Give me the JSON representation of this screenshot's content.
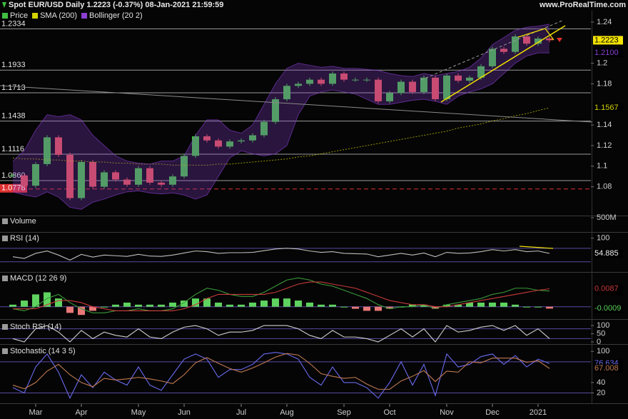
{
  "header": {
    "title": "Spot EUR/USD Daily 1.2223 (-0.37%) 08-Jan-2021 21:59:59",
    "site": "www.ProRealTime.com"
  },
  "chart_data": [
    {
      "type": "candlestick",
      "categories": [
        null,
        null,
        "Mar",
        null,
        null,
        null,
        "Apr",
        null,
        null,
        null,
        null,
        "May",
        null,
        null,
        null,
        "Jun",
        null,
        null,
        null,
        null,
        "Jul",
        null,
        null,
        null,
        "Aug",
        null,
        null,
        null,
        null,
        "Sep",
        null,
        null,
        null,
        "Oct",
        null,
        null,
        null,
        null,
        "Nov",
        null,
        null,
        null,
        "Dec",
        null,
        null,
        null,
        "2021",
        null
      ],
      "ylim": [
        1.052,
        1.251
      ],
      "yticks": [
        1.24,
        1.2,
        1.18,
        1.14,
        1.12,
        1.1,
        1.08
      ],
      "levels": [
        1.2334,
        1.1933,
        1.1713,
        1.1438,
        1.1116,
        {
          "value": 1.086,
          "label": "1.0860"
        }
      ],
      "level_color": "#9a9a9a",
      "level_labels": true,
      "stop_level": 1.0778,
      "stop_color": "#e03030",
      "series": [
        {
          "name": "Price",
          "type": "candle",
          "color": "#3fbf3f",
          "down_color": "#e05050",
          "show_last": true,
          "last_box": "#f5e400",
          "values": [
            1.091,
            1.081,
            1.102,
            1.128,
            1.111,
            1.069,
            1.104,
            1.08,
            1.094,
            1.087,
            1.082,
            1.098,
            1.084,
            1.082,
            1.09,
            1.11,
            1.129,
            1.125,
            1.119,
            1.124,
            1.125,
            1.13,
            1.143,
            1.165,
            1.178,
            1.18,
            1.184,
            1.18,
            1.19,
            1.184,
            1.184,
            1.184,
            1.163,
            1.171,
            1.182,
            1.172,
            1.186,
            1.165,
            1.188,
            1.183,
            1.186,
            1.197,
            1.214,
            1.211,
            1.226,
            1.219,
            1.224,
            1.2223
          ]
        },
        {
          "name": "SMA (200)",
          "type": "line",
          "color": "#d4d400",
          "dashed": true,
          "show_last": true,
          "values": [
            1.108,
            1.107,
            1.107,
            1.106,
            1.106,
            1.105,
            1.105,
            1.104,
            1.104,
            1.103,
            1.103,
            1.102,
            1.102,
            1.102,
            1.101,
            1.101,
            1.101,
            1.101,
            1.102,
            1.102,
            1.103,
            1.104,
            1.105,
            1.106,
            1.107,
            1.109,
            1.11,
            1.112,
            1.114,
            1.116,
            1.118,
            1.12,
            1.122,
            1.124,
            1.126,
            1.128,
            1.13,
            1.132,
            1.134,
            1.137,
            1.139,
            1.141,
            1.144,
            1.146,
            1.149,
            1.151,
            1.154,
            1.1567
          ]
        },
        {
          "name": "Bollinger (20 2)",
          "type": "band",
          "color": "#8a3fd0",
          "last_label": "1.2100",
          "upper": [
            1.105,
            1.115,
            1.135,
            1.15,
            1.148,
            1.15,
            1.145,
            1.13,
            1.12,
            1.11,
            1.105,
            1.103,
            1.102,
            1.105,
            1.105,
            1.11,
            1.13,
            1.145,
            1.145,
            1.135,
            1.132,
            1.14,
            1.16,
            1.18,
            1.195,
            1.2,
            1.198,
            1.196,
            1.197,
            1.195,
            1.195,
            1.194,
            1.193,
            1.19,
            1.188,
            1.187,
            1.19,
            1.188,
            1.19,
            1.192,
            1.196,
            1.205,
            1.218,
            1.225,
            1.232,
            1.235,
            1.236,
            1.238
          ],
          "lower": [
            1.075,
            1.072,
            1.07,
            1.075,
            1.07,
            1.06,
            1.058,
            1.065,
            1.068,
            1.072,
            1.075,
            1.076,
            1.074,
            1.073,
            1.074,
            1.072,
            1.068,
            1.072,
            1.09,
            1.108,
            1.115,
            1.112,
            1.11,
            1.112,
            1.12,
            1.15,
            1.168,
            1.172,
            1.174,
            1.172,
            1.17,
            1.165,
            1.16,
            1.16,
            1.162,
            1.164,
            1.165,
            1.163,
            1.16,
            1.168,
            1.172,
            1.175,
            1.18,
            1.19,
            1.2,
            1.207,
            1.21,
            1.21
          ]
        }
      ]
    },
    {
      "type": "volume",
      "title": "Volume",
      "ylim": [
        0,
        550000000
      ],
      "yticks": [
        {
          "value": 500000000,
          "label": "500M"
        }
      ]
    },
    {
      "type": "line",
      "title": "RSI (14)",
      "ylim": [
        0,
        114
      ],
      "yticks": [
        100
      ],
      "levels": [
        70,
        30
      ],
      "level_color": "#5a4aa0",
      "series": [
        {
          "type": "line",
          "color": "#bdbdbd",
          "show_last": true,
          "values": [
            45,
            40,
            55,
            62,
            50,
            35,
            52,
            44,
            50,
            48,
            46,
            52,
            47,
            46,
            50,
            56,
            62,
            60,
            55,
            57,
            57,
            58,
            63,
            68,
            70,
            68,
            62,
            58,
            60,
            55,
            54,
            53,
            45,
            50,
            55,
            50,
            56,
            45,
            58,
            55,
            56,
            60,
            66,
            62,
            66,
            60,
            62,
            54.885
          ]
        }
      ]
    },
    {
      "type": "line",
      "title": "MACD (12 26 9)",
      "ylim": [
        -0.006,
        0.0162
      ],
      "levels": [
        0
      ],
      "level_color": "#5a4aa0",
      "series": [
        {
          "type": "histogram",
          "color": "#5fd35f",
          "down_color": "#e87878",
          "show_last": true,
          "values": [
            0.001,
            0.003,
            0.006,
            0.007,
            0.004,
            -0.003,
            -0.004,
            -0.002,
            0,
            0.001,
            0.002,
            0.001,
            0.001,
            0.001,
            0.002,
            0.003,
            0.004,
            0.004,
            0.002,
            0.001,
            0.001,
            0.002,
            0.003,
            0.004,
            0.004,
            0.003,
            0.002,
            0.001,
            0.001,
            0,
            -0.001,
            -0.002,
            -0.002,
            -0.001,
            0,
            0.001,
            0.001,
            -0.001,
            0.001,
            0.001,
            0.002,
            0.002,
            0.002,
            0.002,
            0.001,
            0,
            0,
            -0.0009
          ]
        },
        {
          "type": "line",
          "color": "#3a9a3a",
          "show_last": true,
          "values": [
            -0.001,
            -0.002,
            0,
            0.004,
            0.006,
            0.002,
            -0.001,
            -0.003,
            -0.003,
            -0.002,
            -0.002,
            -0.001,
            -0.002,
            -0.002,
            -0.001,
            0.002,
            0.006,
            0.009,
            0.008,
            0.006,
            0.005,
            0.005,
            0.007,
            0.01,
            0.013,
            0.014,
            0.013,
            0.011,
            0.01,
            0.008,
            0.006,
            0.004,
            0.001,
            -0.001,
            0,
            0,
            0.001,
            -0.001,
            0.001,
            0.002,
            0.003,
            0.004,
            0.006,
            0.007,
            0.009,
            0.009,
            0.008,
            0.0076
          ]
        },
        {
          "type": "line",
          "color": "#c83a3a",
          "show_last": true,
          "values": [
            -0.001,
            -0.001,
            -0.001,
            0.001,
            0.003,
            0.003,
            0.002,
            0,
            -0.001,
            -0.002,
            -0.002,
            -0.002,
            -0.002,
            -0.002,
            -0.002,
            -0.001,
            0.001,
            0.004,
            0.006,
            0.006,
            0.006,
            0.006,
            0.006,
            0.007,
            0.009,
            0.011,
            0.012,
            0.012,
            0.011,
            0.01,
            0.009,
            0.007,
            0.005,
            0.003,
            0.002,
            0.001,
            0.001,
            0,
            0,
            0.001,
            0.002,
            0.003,
            0.004,
            0.005,
            0.006,
            0.007,
            0.008,
            0.0087
          ]
        }
      ]
    },
    {
      "type": "line",
      "title": "Stoch RSI (14)",
      "ylim": [
        -13,
        122
      ],
      "yticks": [
        100,
        50,
        0
      ],
      "levels": [
        80,
        20
      ],
      "level_color": "#5a4aa0",
      "series": [
        {
          "type": "line",
          "color": "#cfcfcf",
          "values": [
            20,
            0,
            80,
            100,
            60,
            0,
            70,
            20,
            60,
            40,
            30,
            80,
            30,
            20,
            60,
            90,
            100,
            80,
            40,
            60,
            60,
            70,
            100,
            100,
            100,
            80,
            40,
            20,
            70,
            30,
            30,
            20,
            0,
            40,
            80,
            30,
            80,
            0,
            100,
            60,
            70,
            90,
            100,
            70,
            100,
            40,
            80,
            20
          ]
        }
      ]
    },
    {
      "type": "line",
      "title": "Stochastic (14 3 5)",
      "ylim": [
        0,
        110
      ],
      "yticks": [
        100,
        40,
        20
      ],
      "levels": [
        80,
        20
      ],
      "level_color": "#5a4aa0",
      "series": [
        {
          "type": "line",
          "color": "#6a6af0",
          "show_last": true,
          "values": [
            30,
            20,
            70,
            95,
            60,
            10,
            55,
            30,
            60,
            45,
            35,
            70,
            35,
            25,
            55,
            85,
            95,
            85,
            50,
            65,
            65,
            75,
            95,
            98,
            95,
            85,
            50,
            35,
            70,
            40,
            40,
            30,
            10,
            40,
            80,
            35,
            75,
            15,
            95,
            70,
            75,
            90,
            95,
            75,
            92,
            70,
            85,
            76.634
          ]
        },
        {
          "type": "line",
          "color": "#c07a50",
          "show_last": true,
          "values": [
            35,
            28,
            40,
            62,
            75,
            55,
            40,
            32,
            48,
            45,
            47,
            50,
            47,
            43,
            38,
            55,
            78,
            88,
            77,
            67,
            60,
            68,
            78,
            89,
            96,
            93,
            77,
            57,
            52,
            48,
            50,
            37,
            27,
            27,
            43,
            52,
            63,
            42,
            62,
            60,
            80,
            78,
            87,
            87,
            87,
            79,
            82,
            67.008
          ]
        }
      ]
    }
  ]
}
